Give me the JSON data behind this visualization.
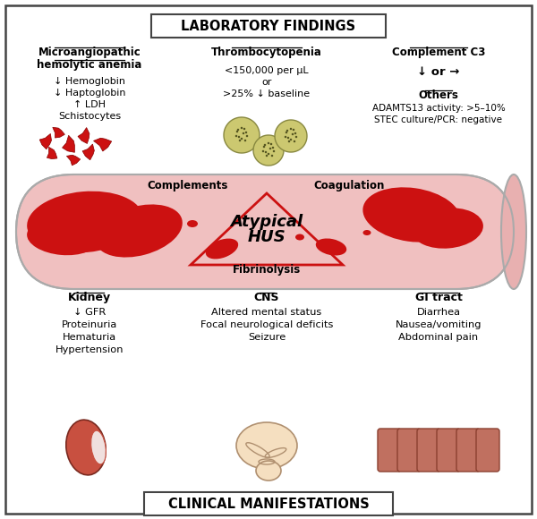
{
  "title_top": "LABORATORY FINDINGS",
  "title_bottom": "CLINICAL MANIFESTATIONS",
  "bg_color": "#ffffff",
  "border_color": "#444444",
  "section1_title_line1": "Microangiopathic",
  "section1_title_line2": "hemolytic anemia",
  "section1_items": [
    "↓ Hemoglobin",
    "↓ Haptoglobin",
    "↑ LDH",
    "Schistocytes"
  ],
  "section2_title": "Thrombocytopenia",
  "section2_items": [
    "<150,000 per μL",
    "or",
    ">25% ↓ baseline"
  ],
  "section3_title": "Complement C3",
  "section3_item": "↓ or →",
  "section3_others_title": "Others",
  "section3_others": [
    "ADAMTS13 activity: >5–10%",
    "STEC culture/PCR: negative"
  ],
  "vessel_label_top_left": "Complements",
  "vessel_label_top_right": "Coagulation",
  "vessel_label_bottom": "Fibrinolysis",
  "vessel_center_line1": "Atypical",
  "vessel_center_line2": "HUS",
  "bottom1_title": "Kidney",
  "bottom1_items": [
    "↓ GFR",
    "Proteinuria",
    "Hematuria",
    "Hypertension"
  ],
  "bottom2_title": "CNS",
  "bottom2_items": [
    "Altered mental status",
    "Focal neurological deficits",
    "Seizure"
  ],
  "bottom3_title": "GI tract",
  "bottom3_items": [
    "Diarrhea",
    "Nausea/vomiting",
    "Abdominal pain"
  ],
  "vessel_fill": "#f0c0c0",
  "vessel_stroke": "#aaaaaa",
  "blood_color": "#cc1111",
  "triangle_edge": "#cc1111",
  "kidney_color": "#c85040",
  "kidney_inner": "#f0e0de",
  "brain_color": "#f5dfc0",
  "gi_color": "#c07060",
  "gi_edge": "#8b4030",
  "platelet_fill": "#ccc870",
  "platelet_edge": "#888840",
  "platelet_dot": "#555520"
}
